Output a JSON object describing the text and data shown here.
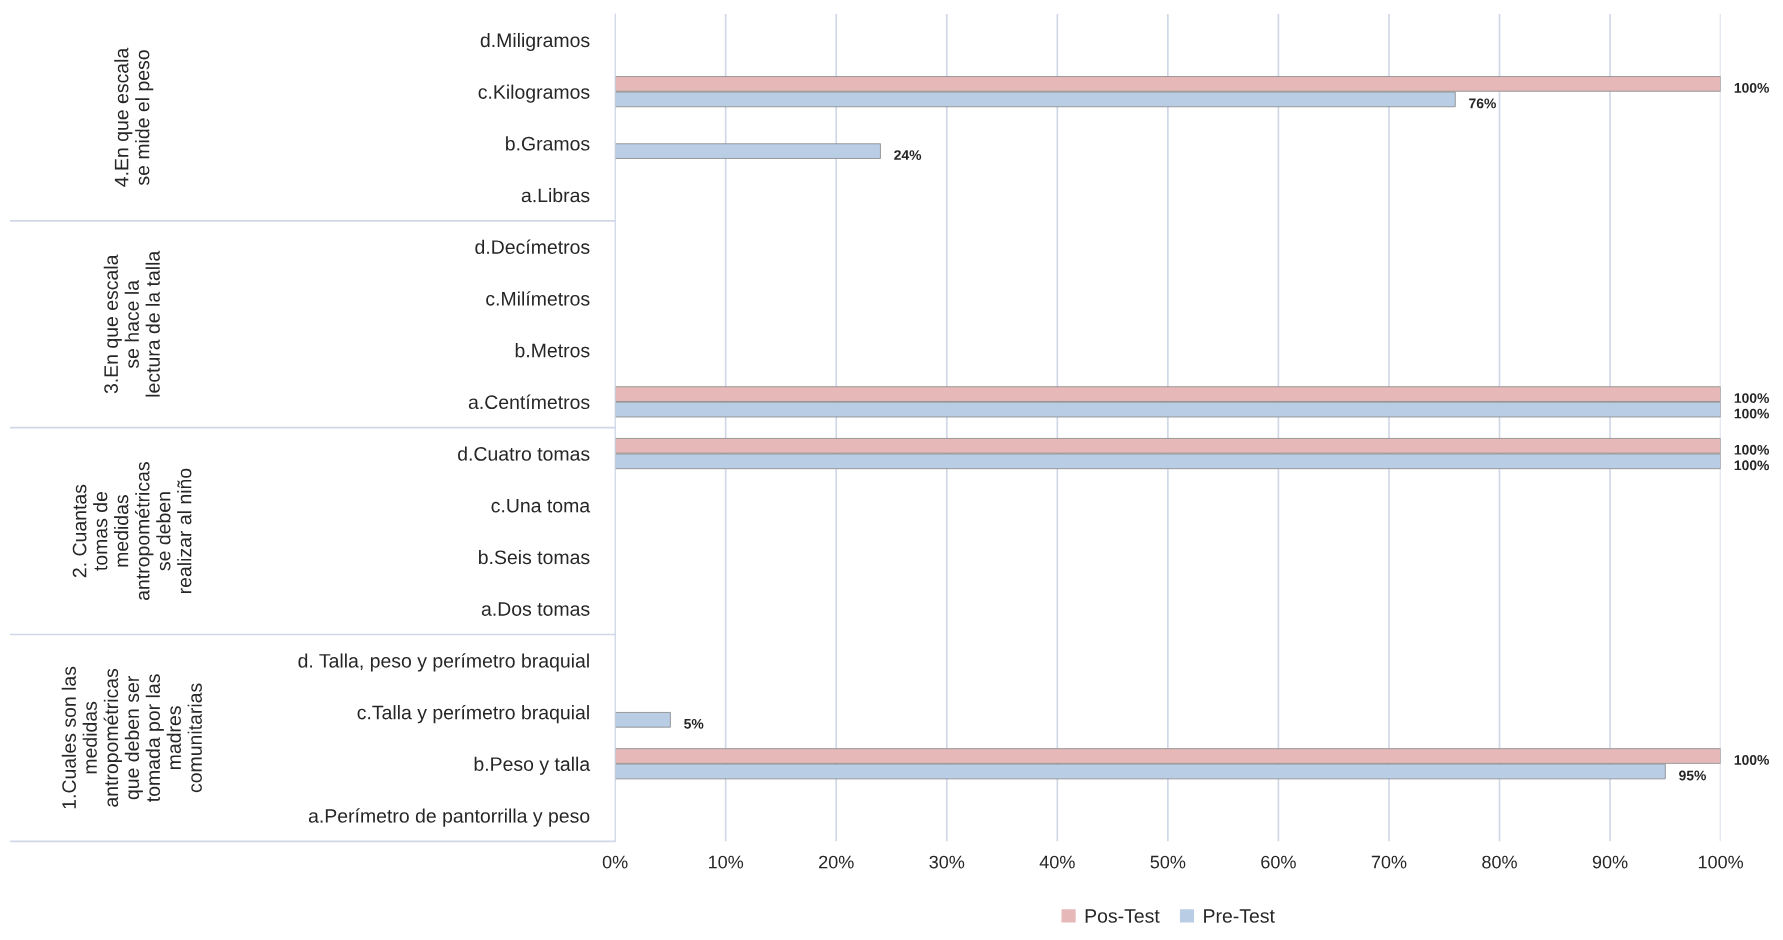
{
  "chart_data": {
    "type": "bar",
    "orientation": "horizontal",
    "categories": [
      "d.Miligramos",
      "c.Kilogramos",
      "b.Gramos",
      "a.Libras",
      "d.Decímetros",
      "c.Milímetros",
      "b.Metros",
      "a.Centímetros",
      "d.Cuatro tomas",
      "c.Una toma",
      "b.Seis tomas",
      "a.Dos tomas",
      "d. Talla, peso y perímetro braquial",
      "c.Talla y perímetro braquial",
      "b.Peso y talla",
      "a.Perímetro de pantorrilla y peso"
    ],
    "series": [
      {
        "name": "Pos-Test",
        "color": "#e6b9b8",
        "values": [
          null,
          100,
          null,
          null,
          null,
          null,
          null,
          100,
          100,
          null,
          null,
          null,
          null,
          null,
          100,
          null
        ],
        "value_labels": [
          null,
          "100%",
          null,
          null,
          null,
          null,
          null,
          "100%",
          "100%",
          null,
          null,
          null,
          null,
          null,
          "100%",
          null
        ]
      },
      {
        "name": "Pre-Test",
        "color": "#b9cde5",
        "values": [
          null,
          76,
          24,
          null,
          null,
          null,
          null,
          100,
          100,
          null,
          null,
          null,
          null,
          5,
          95,
          null
        ],
        "value_labels": [
          null,
          "76%",
          "24%",
          null,
          null,
          null,
          null,
          "100%",
          "100%",
          null,
          null,
          null,
          null,
          "5%",
          "95%",
          null
        ]
      }
    ],
    "annotations": [
      "4.En que escala\nse mide el peso",
      "3.En que escala\nse hace la\nlectura de la talla",
      "2. Cuantas\ntomas de\nmedidas\nantropométricas\nse deben\nrealizar al niño",
      "1.Cuales son las\nmedidas\nantropométricas\nque deben ser\ntomada por las\nmadres\ncomunitarias"
    ],
    "xlim": [
      0,
      100
    ],
    "xticks": [
      {
        "value": 0,
        "label": "0%"
      },
      {
        "value": 10,
        "label": "10%"
      },
      {
        "value": 20,
        "label": "20%"
      },
      {
        "value": 30,
        "label": "30%"
      },
      {
        "value": 40,
        "label": "40%"
      },
      {
        "value": 50,
        "label": "50%"
      },
      {
        "value": 60,
        "label": "60%"
      },
      {
        "value": 70,
        "label": "70%"
      },
      {
        "value": 80,
        "label": "80%"
      },
      {
        "value": 90,
        "label": "90%"
      },
      {
        "value": 100,
        "label": "100%"
      }
    ],
    "grid": "x",
    "legend": "bottom"
  }
}
